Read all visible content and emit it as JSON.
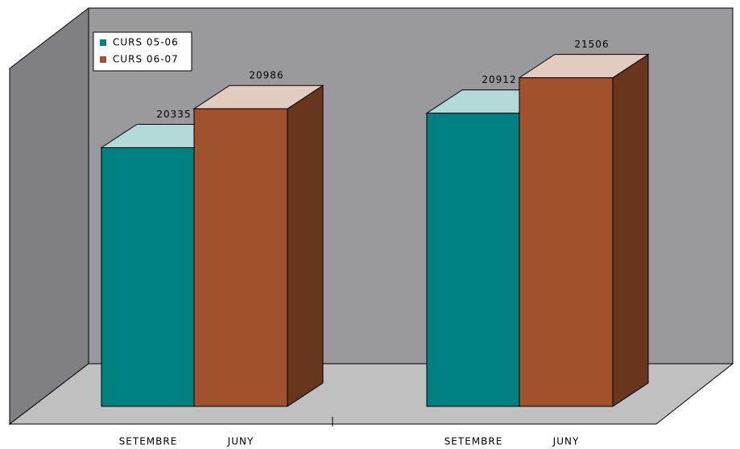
{
  "chart_data": {
    "type": "bar3d",
    "categories": [
      "SETEMBRE",
      "JUNY",
      "SETEMBRE",
      "JUNY"
    ],
    "series": [
      {
        "name": "CURS 05-06",
        "color": "#008080",
        "values": [
          20335,
          null,
          20912,
          null
        ]
      },
      {
        "name": "CURS 06-07",
        "color": "#a0522d",
        "values": [
          null,
          20986,
          null,
          21506
        ]
      }
    ],
    "ylim": [
      16000,
      22000
    ]
  }
}
